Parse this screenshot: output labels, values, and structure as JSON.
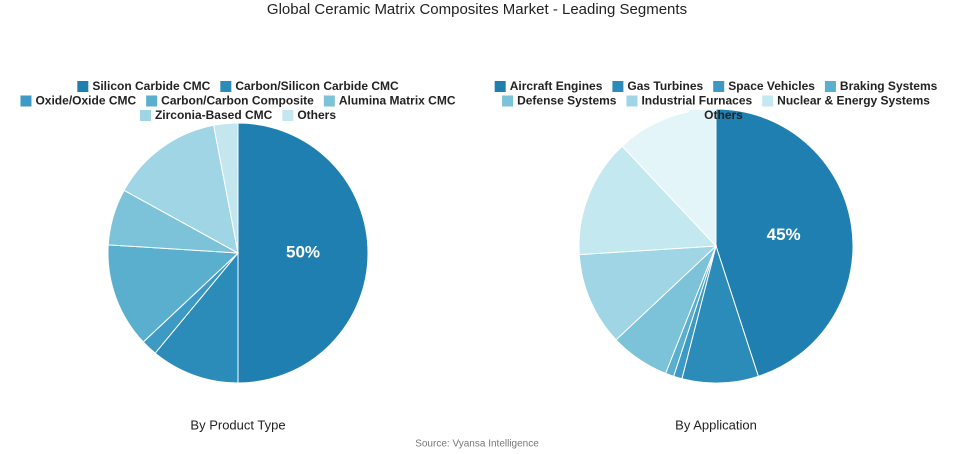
{
  "title": "Global Ceramic Matrix Composites Market - Leading Segments",
  "source": "Source: Vyansa Intelligence",
  "chart_data": [
    {
      "type": "pie",
      "subtitle": "By Product Type",
      "categories": [
        "Silicon Carbide CMC",
        "Carbon/Silicon Carbide CMC",
        "Oxide/Oxide CMC",
        "Carbon/Carbon Composite",
        "Alumina Matrix CMC",
        "Zirconia-Based CMC",
        "Others"
      ],
      "values": [
        50,
        11,
        2,
        13,
        7,
        14,
        3
      ],
      "value_labels": [
        "50%",
        null,
        null,
        null,
        null,
        null,
        null
      ],
      "colors": [
        "#1f7fb0",
        "#2b8cba",
        "#3d9ac4",
        "#5aafcf",
        "#7cc2d9",
        "#9fd5e4",
        "#c4e7ef"
      ]
    },
    {
      "type": "pie",
      "subtitle": "By Application",
      "categories": [
        "Aircraft Engines",
        "Gas Turbines",
        "Space Vehicles",
        "Braking Systems",
        "Defense Systems",
        "Industrial Furnaces",
        "Nuclear & Energy Systems",
        "Others"
      ],
      "values": [
        45,
        9,
        1,
        1,
        7,
        11,
        14,
        12
      ],
      "value_labels": [
        "45%",
        null,
        null,
        null,
        null,
        null,
        null,
        null
      ],
      "colors": [
        "#1f7fb0",
        "#2b8cba",
        "#3d9ac4",
        "#5aafcf",
        "#7cc2d9",
        "#9fd5e4",
        "#c4e8ef",
        "#e3f5f8"
      ]
    }
  ]
}
